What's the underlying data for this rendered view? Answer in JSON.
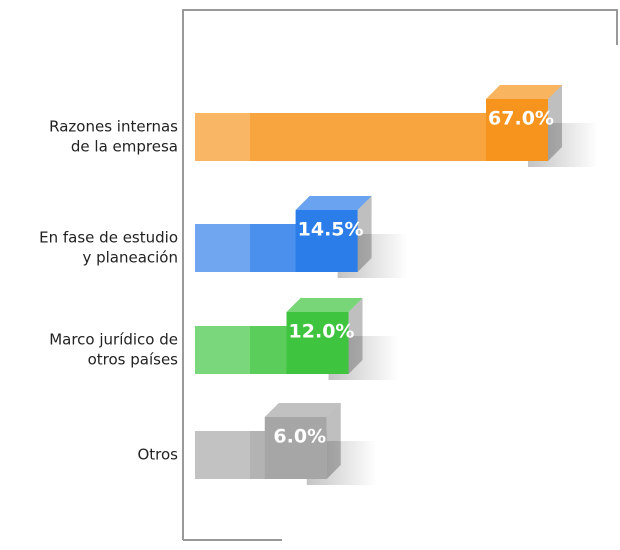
{
  "chart_data": {
    "type": "bar",
    "orientation": "horizontal",
    "categories": [
      [
        "Razones internas",
        "de la empresa"
      ],
      [
        "En fase de estudio",
        "y planeación"
      ],
      [
        "Marco jurídico de",
        "otros países"
      ],
      [
        "Otros"
      ]
    ],
    "values": [
      67.0,
      14.5,
      12.0,
      6.0
    ],
    "value_labels": [
      "67.0%",
      "14.5%",
      "12.0%",
      "6.0%"
    ],
    "colors": [
      "#f7941d",
      "#2b7de9",
      "#3ec43e",
      "#a6a6a6"
    ]
  }
}
